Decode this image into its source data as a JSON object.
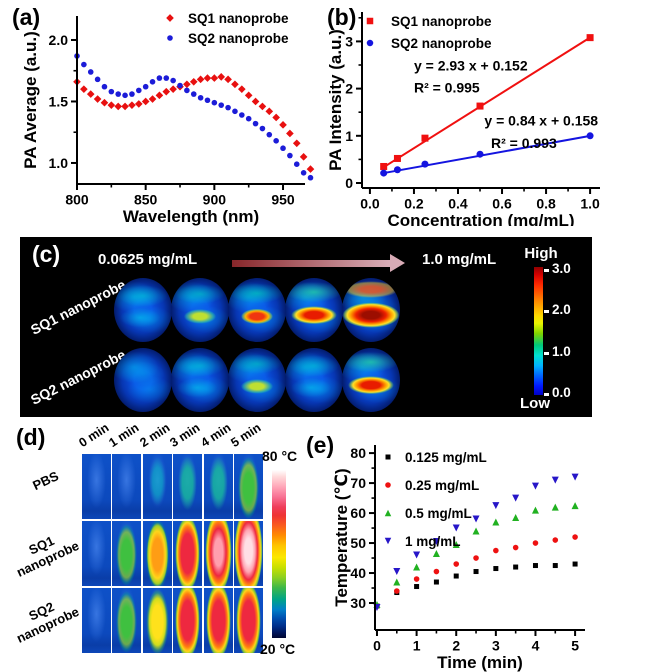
{
  "panel_a": {
    "label": "(a)"
  },
  "panel_b": {
    "label": "(b)"
  },
  "panel_c": {
    "label": "(c)",
    "conc_start": "0.0625 mg/mL",
    "conc_end": "1.0 mg/mL",
    "colorbar": {
      "high_label": "High",
      "low_label": "Low",
      "ticks": [
        "3.0",
        "2.0",
        "1.0",
        "0.0"
      ]
    },
    "rows": [
      {
        "label": "SQ1 nanoprobe",
        "oval_levels": [
          1,
          2,
          3,
          4,
          5
        ]
      },
      {
        "label": "SQ2 nanoprobe",
        "oval_levels": [
          0,
          1,
          2,
          1,
          4
        ]
      }
    ]
  },
  "panel_d": {
    "label": "(d)",
    "col_headers": [
      "0 min",
      "1 min",
      "2 min",
      "3 min",
      "4 min",
      "5 min"
    ],
    "rows": [
      {
        "label": "PBS",
        "heat_levels": [
          0,
          0,
          1,
          2,
          2,
          3
        ]
      },
      {
        "label": "SQ1\nnanoprobe",
        "heat_levels": [
          0,
          3,
          6,
          7,
          8,
          9
        ]
      },
      {
        "label": "SQ2\nnanoprobe",
        "heat_levels": [
          0,
          3,
          5,
          7,
          7,
          7
        ]
      }
    ],
    "colorbar": {
      "top_label": "80 °C",
      "bottom_label": "20 °C"
    }
  },
  "panel_e": {
    "label": "(e)"
  },
  "chart_data": [
    {
      "id": "a",
      "type": "scatter",
      "title": "",
      "xlabel": "Wavelength (nm)",
      "ylabel": "PA Average (a.u.)",
      "xlim": [
        800,
        966
      ],
      "ylim": [
        0.829,
        2.195
      ],
      "xticks": [
        800,
        850,
        900,
        950
      ],
      "xtick_labels": [
        "800",
        "850",
        "900",
        "950"
      ],
      "xminor": [
        825,
        875,
        925
      ],
      "yticks": [
        1.0,
        1.5,
        2.0
      ],
      "ytick_labels": [
        "1.0",
        "1.5",
        "2.0"
      ],
      "yminor": [
        1.25,
        1.75
      ],
      "legend_position": "top-right-inside",
      "grid": false,
      "series": [
        {
          "name": "SQ1 nanoprobe",
          "color": "#e81010",
          "marker": "diamond",
          "size": 5.4,
          "x": [
            800,
            805,
            810,
            815,
            820,
            825,
            830,
            835,
            840,
            845,
            850,
            855,
            860,
            865,
            870,
            875,
            880,
            885,
            890,
            895,
            900,
            905,
            910,
            915,
            920,
            925,
            930,
            935,
            940,
            945,
            950,
            955,
            960,
            965,
            970
          ],
          "y": [
            1.66,
            1.6,
            1.56,
            1.52,
            1.49,
            1.47,
            1.46,
            1.46,
            1.47,
            1.48,
            1.5,
            1.52,
            1.55,
            1.58,
            1.6,
            1.62,
            1.64,
            1.66,
            1.68,
            1.69,
            1.69,
            1.7,
            1.68,
            1.64,
            1.6,
            1.55,
            1.5,
            1.46,
            1.42,
            1.37,
            1.31,
            1.24,
            1.16,
            1.05,
            0.95
          ]
        },
        {
          "name": "SQ2 nanoprobe",
          "color": "#1c1cd8",
          "marker": "circle",
          "size": 5.6,
          "x": [
            800,
            805,
            810,
            815,
            820,
            825,
            830,
            835,
            840,
            845,
            850,
            855,
            860,
            865,
            870,
            875,
            880,
            885,
            890,
            895,
            900,
            905,
            910,
            915,
            920,
            925,
            930,
            935,
            940,
            945,
            950,
            955,
            960,
            965,
            970
          ],
          "y": [
            1.87,
            1.8,
            1.74,
            1.68,
            1.62,
            1.58,
            1.56,
            1.55,
            1.56,
            1.59,
            1.62,
            1.66,
            1.69,
            1.69,
            1.67,
            1.63,
            1.59,
            1.56,
            1.53,
            1.51,
            1.49,
            1.47,
            1.45,
            1.42,
            1.39,
            1.36,
            1.32,
            1.28,
            1.23,
            1.18,
            1.12,
            1.06,
            0.99,
            0.92,
            0.88
          ]
        }
      ]
    },
    {
      "id": "b",
      "type": "scatter",
      "title": "",
      "xlabel": "Concentration (mg/mL)",
      "ylabel": "PA Intensity (a.u.)",
      "xlim": [
        -0.036,
        1.045
      ],
      "ylim": [
        -0.106,
        3.623
      ],
      "xticks": [
        0.0,
        0.2,
        0.4,
        0.6,
        0.8,
        1.0
      ],
      "xtick_labels": [
        "0.0",
        "0.2",
        "0.4",
        "0.6",
        "0.8",
        "1.0"
      ],
      "xminor": [
        0.1,
        0.3,
        0.5,
        0.7,
        0.9
      ],
      "yticks": [
        0,
        1,
        2,
        3
      ],
      "ytick_labels": [
        "0",
        "1",
        "2",
        "3"
      ],
      "yminor": [
        0.5,
        1.5,
        2.5,
        3.5
      ],
      "legend_position": "top-left-inside",
      "grid": false,
      "series": [
        {
          "name": "SQ1 nanoprobe",
          "color": "#f01010",
          "marker": "square",
          "size": 7,
          "x": [
            0.0625,
            0.125,
            0.25,
            0.5,
            1.0
          ],
          "y": [
            0.35,
            0.52,
            0.95,
            1.63,
            3.08
          ],
          "fit": {
            "slope": 2.93,
            "intercept": 0.152,
            "equation": "y = 2.93 x + 0.152",
            "r_squared": "R² = 0.995",
            "eq_pos": [
              0.2,
              2.38
            ],
            "r2_pos": [
              0.2,
              1.92
            ]
          }
        },
        {
          "name": "SQ2 nanoprobe",
          "color": "#1414e0",
          "marker": "circle",
          "size": 7,
          "x": [
            0.0625,
            0.125,
            0.25,
            0.5,
            1.0
          ],
          "y": [
            0.21,
            0.28,
            0.4,
            0.61,
            1.0
          ],
          "fit": {
            "slope": 0.84,
            "intercept": 0.158,
            "equation": "y = 0.84 x + 0.158",
            "r_squared": "R² = 0.993",
            "eq_pos": [
              0.52,
              1.22
            ],
            "r2_pos": [
              0.55,
              0.74
            ]
          }
        }
      ]
    },
    {
      "id": "e",
      "type": "scatter",
      "title": "",
      "xlabel": "Time (min)",
      "ylabel": "Temperature (℃)",
      "xlim": [
        -0.05,
        5.25
      ],
      "ylim": [
        21,
        82.7
      ],
      "xticks": [
        0,
        1,
        2,
        3,
        4,
        5
      ],
      "xtick_labels": [
        "0",
        "1",
        "2",
        "3",
        "4",
        "5"
      ],
      "xminor": [
        0.5,
        1.5,
        2.5,
        3.5,
        4.5
      ],
      "yticks": [
        30,
        40,
        50,
        60,
        70,
        80
      ],
      "ytick_labels": [
        "30",
        "40",
        "50",
        "60",
        "70",
        "80"
      ],
      "yminor": [
        35,
        45,
        55,
        65,
        75
      ],
      "legend_position": "top-left-inside",
      "grid": false,
      "x": [
        0,
        0.5,
        1,
        1.5,
        2,
        2.5,
        3,
        3.5,
        4,
        4.5,
        5
      ],
      "series": [
        {
          "name": "0.125 mg/mL",
          "color": "#000000",
          "marker": "square",
          "size": 5,
          "y": [
            29,
            33.5,
            35.5,
            37,
            39,
            40.5,
            41.5,
            42,
            42.5,
            42.5,
            43
          ]
        },
        {
          "name": "0.25 mg/mL",
          "color": "#ee1111",
          "marker": "circle",
          "size": 5.6,
          "y": [
            29,
            34,
            38,
            40.5,
            43,
            45,
            47.5,
            48.5,
            50,
            51,
            52
          ]
        },
        {
          "name": "0.5 mg/mL",
          "color": "#21b121",
          "marker": "triangle-up",
          "size": 7,
          "y": [
            29.5,
            37,
            42,
            46.5,
            49.5,
            54,
            57,
            58.5,
            61,
            62,
            62.5
          ]
        },
        {
          "name": "1 mg/mL",
          "color": "#2716c8",
          "marker": "triangle-down",
          "size": 7,
          "y": [
            28.5,
            40.5,
            46,
            50.5,
            55,
            58,
            62.5,
            65,
            69,
            71,
            72
          ]
        }
      ]
    }
  ]
}
